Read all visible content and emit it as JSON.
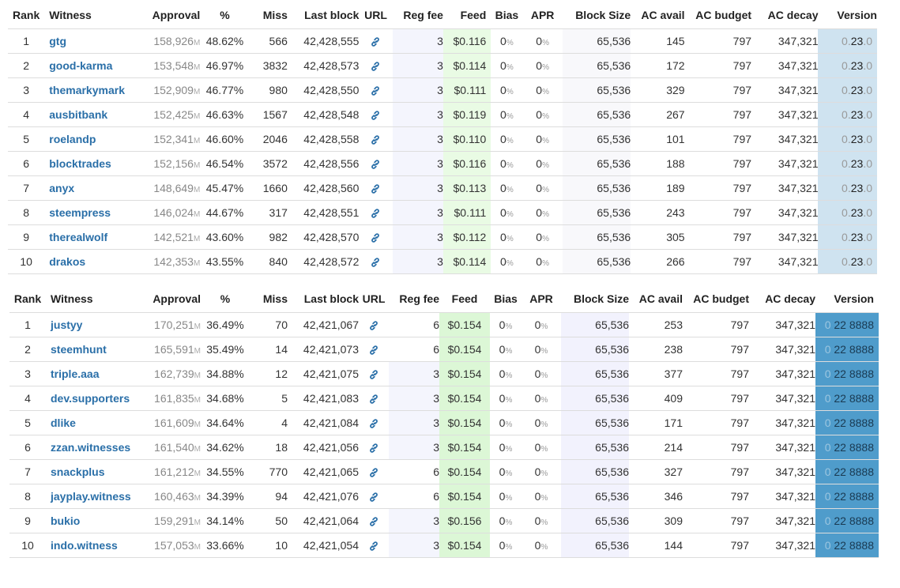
{
  "headers": {
    "rank": "Rank",
    "witness": "Witness",
    "approval": "Approval",
    "percent": "%",
    "miss": "Miss",
    "last_block": "Last block",
    "url": "URL",
    "reg_fee": "Reg fee",
    "feed": "Feed",
    "bias": "Bias",
    "apr": "APR",
    "block_size": "Block Size",
    "ac_avail": "AC avail",
    "ac_budget": "AC budget",
    "ac_decay": "AC decay",
    "version": "Version"
  },
  "unit_m": "M",
  "percent_sign": "%",
  "table1": {
    "rows": [
      {
        "rank": "1",
        "witness": "gtg",
        "approval": "158,926",
        "pct": "48.62%",
        "miss": "566",
        "last_block": "42,428,555",
        "reg_fee": "3",
        "feed": "$0.116",
        "bias": "0",
        "apr": "0",
        "block_size": "65,536",
        "ac_avail": "145",
        "ac_budget": "797",
        "ac_decay": "347,321",
        "version_major": "0.",
        "version_minor": "23",
        "version_patch": ".0"
      },
      {
        "rank": "2",
        "witness": "good-karma",
        "approval": "153,548",
        "pct": "46.97%",
        "miss": "3832",
        "last_block": "42,428,573",
        "reg_fee": "3",
        "feed": "$0.114",
        "bias": "0",
        "apr": "0",
        "block_size": "65,536",
        "ac_avail": "172",
        "ac_budget": "797",
        "ac_decay": "347,321",
        "version_major": "0.",
        "version_minor": "23",
        "version_patch": ".0"
      },
      {
        "rank": "3",
        "witness": "themarkymark",
        "approval": "152,909",
        "pct": "46.77%",
        "miss": "980",
        "last_block": "42,428,550",
        "reg_fee": "3",
        "feed": "$0.111",
        "bias": "0",
        "apr": "0",
        "block_size": "65,536",
        "ac_avail": "329",
        "ac_budget": "797",
        "ac_decay": "347,321",
        "version_major": "0.",
        "version_minor": "23",
        "version_patch": ".0"
      },
      {
        "rank": "4",
        "witness": "ausbitbank",
        "approval": "152,425",
        "pct": "46.63%",
        "miss": "1567",
        "last_block": "42,428,548",
        "reg_fee": "3",
        "feed": "$0.119",
        "bias": "0",
        "apr": "0",
        "block_size": "65,536",
        "ac_avail": "267",
        "ac_budget": "797",
        "ac_decay": "347,321",
        "version_major": "0.",
        "version_minor": "23",
        "version_patch": ".0"
      },
      {
        "rank": "5",
        "witness": "roelandp",
        "approval": "152,341",
        "pct": "46.60%",
        "miss": "2046",
        "last_block": "42,428,558",
        "reg_fee": "3",
        "feed": "$0.110",
        "bias": "0",
        "apr": "0",
        "block_size": "65,536",
        "ac_avail": "101",
        "ac_budget": "797",
        "ac_decay": "347,321",
        "version_major": "0.",
        "version_minor": "23",
        "version_patch": ".0"
      },
      {
        "rank": "6",
        "witness": "blocktrades",
        "approval": "152,156",
        "pct": "46.54%",
        "miss": "3572",
        "last_block": "42,428,556",
        "reg_fee": "3",
        "feed": "$0.116",
        "bias": "0",
        "apr": "0",
        "block_size": "65,536",
        "ac_avail": "188",
        "ac_budget": "797",
        "ac_decay": "347,321",
        "version_major": "0.",
        "version_minor": "23",
        "version_patch": ".0"
      },
      {
        "rank": "7",
        "witness": "anyx",
        "approval": "148,649",
        "pct": "45.47%",
        "miss": "1660",
        "last_block": "42,428,560",
        "reg_fee": "3",
        "feed": "$0.113",
        "bias": "0",
        "apr": "0",
        "block_size": "65,536",
        "ac_avail": "189",
        "ac_budget": "797",
        "ac_decay": "347,321",
        "version_major": "0.",
        "version_minor": "23",
        "version_patch": ".0"
      },
      {
        "rank": "8",
        "witness": "steempress",
        "approval": "146,024",
        "pct": "44.67%",
        "miss": "317",
        "last_block": "42,428,551",
        "reg_fee": "3",
        "feed": "$0.111",
        "bias": "0",
        "apr": "0",
        "block_size": "65,536",
        "ac_avail": "243",
        "ac_budget": "797",
        "ac_decay": "347,321",
        "version_major": "0.",
        "version_minor": "23",
        "version_patch": ".0"
      },
      {
        "rank": "9",
        "witness": "therealwolf",
        "approval": "142,521",
        "pct": "43.60%",
        "miss": "982",
        "last_block": "42,428,570",
        "reg_fee": "3",
        "feed": "$0.112",
        "bias": "0",
        "apr": "0",
        "block_size": "65,536",
        "ac_avail": "305",
        "ac_budget": "797",
        "ac_decay": "347,321",
        "version_major": "0.",
        "version_minor": "23",
        "version_patch": ".0"
      },
      {
        "rank": "10",
        "witness": "drakos",
        "approval": "142,353",
        "pct": "43.55%",
        "miss": "840",
        "last_block": "42,428,572",
        "reg_fee": "3",
        "feed": "$0.114",
        "bias": "0",
        "apr": "0",
        "block_size": "65,536",
        "ac_avail": "266",
        "ac_budget": "797",
        "ac_decay": "347,321",
        "version_major": "0.",
        "version_minor": "23",
        "version_patch": ".0"
      }
    ]
  },
  "table2": {
    "rows": [
      {
        "rank": "1",
        "witness": "justyy",
        "approval": "170,251",
        "pct": "36.49%",
        "miss": "70",
        "last_block": "42,421,067",
        "reg_fee": "6",
        "feed": "$0.154",
        "bias": "0",
        "apr": "0",
        "block_size": "65,536",
        "ac_avail": "253",
        "ac_budget": "797",
        "ac_decay": "347,321",
        "version_major": "0",
        "version_minor": "22 8888"
      },
      {
        "rank": "2",
        "witness": "steemhunt",
        "approval": "165,591",
        "pct": "35.49%",
        "miss": "14",
        "last_block": "42,421,073",
        "reg_fee": "6",
        "feed": "$0.154",
        "bias": "0",
        "apr": "0",
        "block_size": "65,536",
        "ac_avail": "238",
        "ac_budget": "797",
        "ac_decay": "347,321",
        "version_major": "0",
        "version_minor": "22 8888"
      },
      {
        "rank": "3",
        "witness": "triple.aaa",
        "approval": "162,739",
        "pct": "34.88%",
        "miss": "12",
        "last_block": "42,421,075",
        "reg_fee": "3",
        "feed": "$0.154",
        "bias": "0",
        "apr": "0",
        "block_size": "65,536",
        "ac_avail": "377",
        "ac_budget": "797",
        "ac_decay": "347,321",
        "version_major": "0",
        "version_minor": "22 8888"
      },
      {
        "rank": "4",
        "witness": "dev.supporters",
        "approval": "161,835",
        "pct": "34.68%",
        "miss": "5",
        "last_block": "42,421,083",
        "reg_fee": "3",
        "feed": "$0.154",
        "bias": "0",
        "apr": "0",
        "block_size": "65,536",
        "ac_avail": "409",
        "ac_budget": "797",
        "ac_decay": "347,321",
        "version_major": "0",
        "version_minor": "22 8888"
      },
      {
        "rank": "5",
        "witness": "dlike",
        "approval": "161,609",
        "pct": "34.64%",
        "miss": "4",
        "last_block": "42,421,084",
        "reg_fee": "3",
        "feed": "$0.154",
        "bias": "0",
        "apr": "0",
        "block_size": "65,536",
        "ac_avail": "171",
        "ac_budget": "797",
        "ac_decay": "347,321",
        "version_major": "0",
        "version_minor": "22 8888"
      },
      {
        "rank": "6",
        "witness": "zzan.witnesses",
        "approval": "161,540",
        "pct": "34.62%",
        "miss": "18",
        "last_block": "42,421,056",
        "reg_fee": "3",
        "feed": "$0.154",
        "bias": "0",
        "apr": "0",
        "block_size": "65,536",
        "ac_avail": "214",
        "ac_budget": "797",
        "ac_decay": "347,321",
        "version_major": "0",
        "version_minor": "22 8888"
      },
      {
        "rank": "7",
        "witness": "snackplus",
        "approval": "161,212",
        "pct": "34.55%",
        "miss": "770",
        "last_block": "42,421,065",
        "reg_fee": "6",
        "feed": "$0.154",
        "bias": "0",
        "apr": "0",
        "block_size": "65,536",
        "ac_avail": "327",
        "ac_budget": "797",
        "ac_decay": "347,321",
        "version_major": "0",
        "version_minor": "22 8888"
      },
      {
        "rank": "8",
        "witness": "jayplay.witness",
        "approval": "160,463",
        "pct": "34.39%",
        "miss": "94",
        "last_block": "42,421,076",
        "reg_fee": "6",
        "feed": "$0.154",
        "bias": "0",
        "apr": "0",
        "block_size": "65,536",
        "ac_avail": "346",
        "ac_budget": "797",
        "ac_decay": "347,321",
        "version_major": "0",
        "version_minor": "22 8888"
      },
      {
        "rank": "9",
        "witness": "bukio",
        "approval": "159,291",
        "pct": "34.14%",
        "miss": "50",
        "last_block": "42,421,064",
        "reg_fee": "3",
        "feed": "$0.156",
        "bias": "0",
        "apr": "0",
        "block_size": "65,536",
        "ac_avail": "309",
        "ac_budget": "797",
        "ac_decay": "347,321",
        "version_major": "0",
        "version_minor": "22 8888"
      },
      {
        "rank": "10",
        "witness": "indo.witness",
        "approval": "157,053",
        "pct": "33.66%",
        "miss": "10",
        "last_block": "42,421,054",
        "reg_fee": "3",
        "feed": "$0.154",
        "bias": "0",
        "apr": "0",
        "block_size": "65,536",
        "ac_avail": "144",
        "ac_budget": "797",
        "ac_decay": "347,321",
        "version_major": "0",
        "version_minor": "22 8888"
      }
    ]
  },
  "icons": {
    "url": "link-icon"
  },
  "colors": {
    "witness_link": "#2a6fa8",
    "reg_fee_bg": "#f4f5fd",
    "feed_bg_1": "#e9fbe4",
    "feed_bg_2": "#dcf7d6",
    "version_bg_1": "#cfe3f0",
    "version_bg_2": "#4f9ccb"
  }
}
